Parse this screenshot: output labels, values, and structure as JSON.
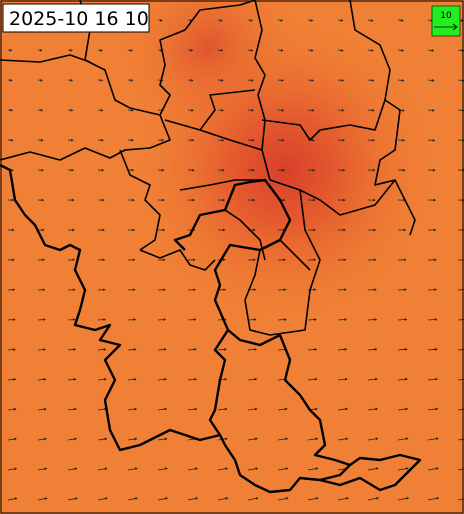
{
  "map": {
    "timestamp": "2025-10 16 10",
    "wind_legend": {
      "label": "10"
    }
  }
}
